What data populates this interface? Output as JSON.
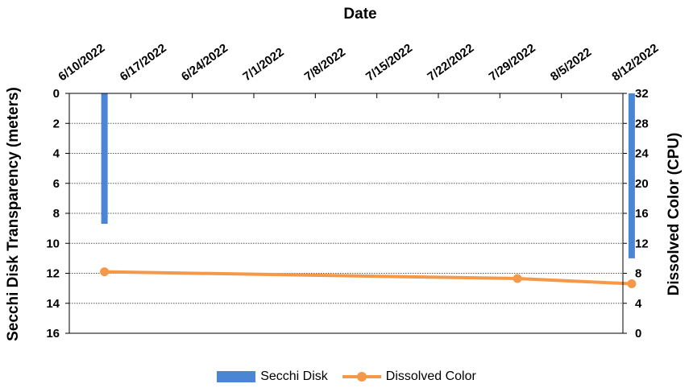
{
  "chart_data": {
    "type": "bar+line",
    "x_title": "Date",
    "x_tick_labels": [
      "6/10/2022",
      "6/17/2022",
      "6/24/2022",
      "7/1/2022",
      "7/8/2022",
      "7/15/2022",
      "7/22/2022",
      "7/29/2022",
      "8/5/2022",
      "8/12/2022"
    ],
    "xlim": [
      "6/10/2022",
      "8/12/2022"
    ],
    "left_axis": {
      "label": "Secchi Disk Transparency (meters)",
      "ticks": [
        0,
        2,
        4,
        6,
        8,
        10,
        12,
        14,
        16
      ],
      "ylim": [
        0,
        16
      ],
      "inverted": true
    },
    "right_axis": {
      "label": "Dissolved Color (CPU)",
      "ticks": [
        0,
        4,
        8,
        12,
        16,
        20,
        24,
        28,
        32
      ],
      "ylim": [
        0,
        32
      ]
    },
    "grid": "horizontal dotted",
    "legend_position": "bottom",
    "series": [
      {
        "name": "Secchi Disk",
        "kind": "bar",
        "axis": "left",
        "color": "#4A86D4",
        "points": [
          {
            "x": "6/14/2022",
            "y": 8.7
          },
          {
            "x": "8/13/2022",
            "y": 11.0
          }
        ]
      },
      {
        "name": "Dissolved Color",
        "kind": "line",
        "axis": "right",
        "color": "#F4994A",
        "points": [
          {
            "x": "6/14/2022",
            "y": 8.2
          },
          {
            "x": "7/31/2022",
            "y": 7.3
          },
          {
            "x": "8/13/2022",
            "y": 6.6
          }
        ]
      }
    ]
  }
}
